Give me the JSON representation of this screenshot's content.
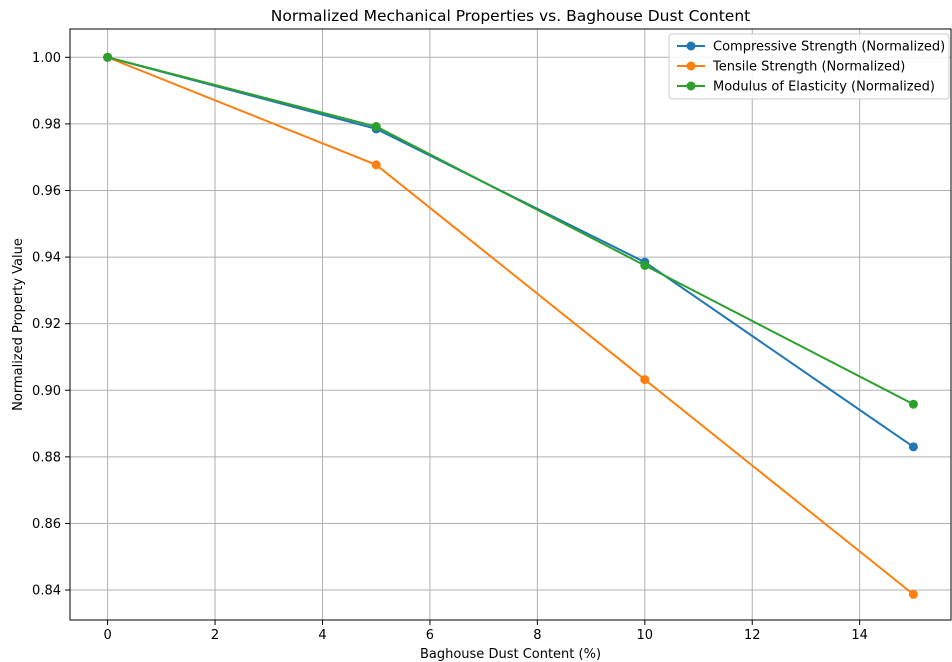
{
  "chart_data": {
    "type": "line",
    "title": "Normalized Mechanical Properties vs. Baghouse Dust Content",
    "xlabel": "Baghouse Dust Content (%)",
    "ylabel": "Normalized Property Value",
    "xlim": [
      -0.7,
      15.7
    ],
    "ylim": [
      0.831,
      1.0085
    ],
    "x_ticks": [
      0,
      2,
      4,
      6,
      8,
      10,
      12,
      14
    ],
    "y_ticks": [
      0.84,
      0.86,
      0.88,
      0.9,
      0.92,
      0.94,
      0.96,
      0.98,
      1.0
    ],
    "x_tick_labels": [
      "0",
      "2",
      "4",
      "6",
      "8",
      "10",
      "12",
      "14"
    ],
    "y_tick_labels": [
      "0.84",
      "0.86",
      "0.88",
      "0.90",
      "0.92",
      "0.94",
      "0.96",
      "0.98",
      "1.00"
    ],
    "x": [
      0,
      5,
      10,
      15
    ],
    "grid": true,
    "legend_position": "top-right",
    "series": [
      {
        "name": "Compressive Strength (Normalized)",
        "color": "#1f77b4",
        "values": [
          1.0,
          0.9785,
          0.9385,
          0.883
        ]
      },
      {
        "name": "Tensile Strength (Normalized)",
        "color": "#ff7f0e",
        "values": [
          1.0,
          0.9677,
          0.9032,
          0.8387
        ]
      },
      {
        "name": "Modulus of Elasticity (Normalized)",
        "color": "#2ca02c",
        "values": [
          1.0,
          0.9792,
          0.9375,
          0.8958
        ]
      }
    ]
  }
}
